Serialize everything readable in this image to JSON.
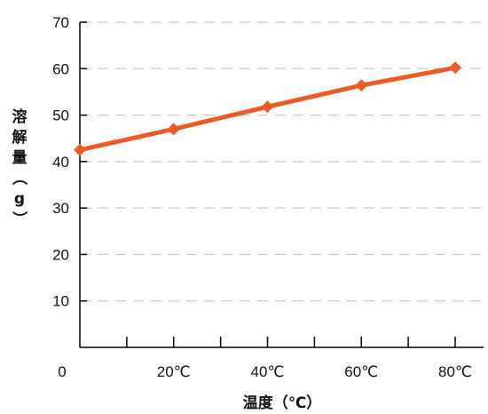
{
  "chart_data": {
    "type": "line",
    "xlabel": "温度（℃）",
    "ylabel": "溶解量（g）",
    "x_origin_label": "0",
    "x": [
      0,
      20,
      40,
      60,
      80
    ],
    "x_tick_labels": [
      "20℃",
      "40℃",
      "60℃",
      "80℃"
    ],
    "y_ticks": [
      10,
      20,
      30,
      40,
      50,
      60,
      70
    ],
    "ylim": [
      0,
      70
    ],
    "xlim": [
      0,
      85
    ],
    "grid": true,
    "series": [
      {
        "color": "#ee5a24",
        "values": [
          42.5,
          47.0,
          51.8,
          56.4,
          60.2
        ]
      }
    ]
  }
}
